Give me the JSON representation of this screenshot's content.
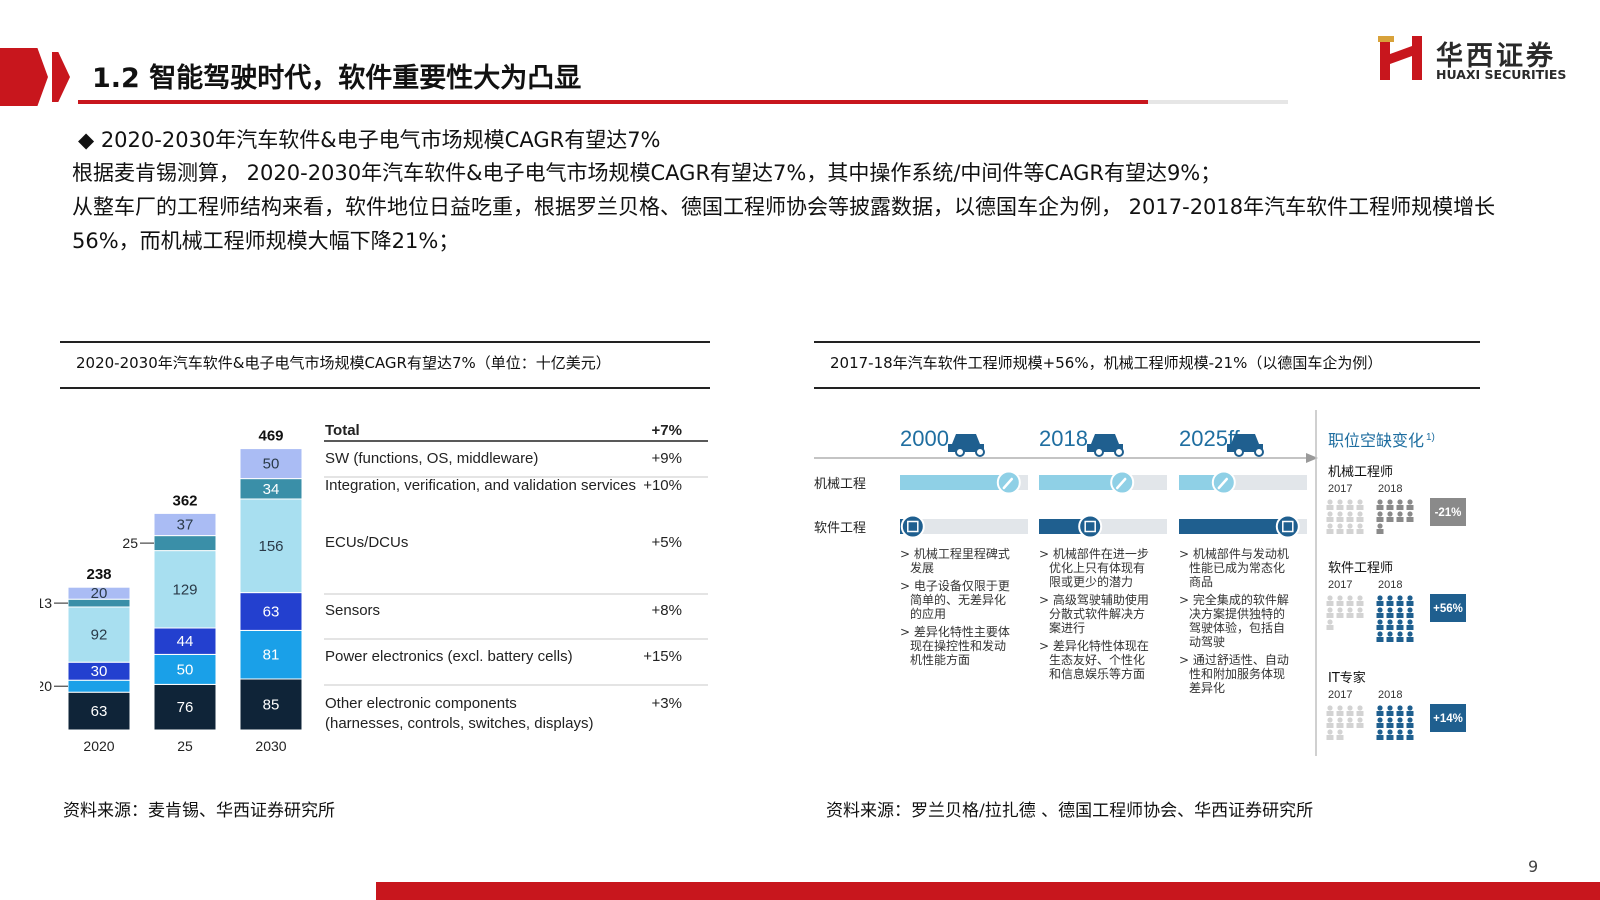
{
  "header": {
    "title": "1.2 智能驾驶时代，软件重要性大为凸显",
    "logo_cn": "华西证券",
    "logo_en": "HUAXI SECURITIES",
    "accent_color": "#c8161d"
  },
  "body": {
    "bullet": "◆  2020-2030年汽车软件&电子电气市场规模CAGR有望达7%",
    "para1": "根据麦肯锡测算， 2020-2030年汽车软件&电子电气市场规模CAGR有望达7%，其中操作系统/中间件等CAGR有望达9%；",
    "para2": "从整车厂的工程师结构来看，软件地位日益吃重，根据罗兰贝格、德国工程师协会等披露数据，以德国车企为例， 2017-2018年汽车软件工程师规模增长56%，而机械工程师规模大幅下降21%；"
  },
  "left_panel": {
    "title": "2020-2030年汽车软件&电子电气市场规模CAGR有望达7%（单位：十亿美元）",
    "source": "资料来源：麦肯锡、华西证券研究所"
  },
  "chart_data": {
    "type": "bar",
    "stacked": true,
    "categories": [
      "2020",
      "25",
      "2030"
    ],
    "totals": [
      238,
      362,
      469
    ],
    "legend_header": {
      "name": "Total",
      "cagr": "+7%"
    },
    "series": [
      {
        "name": "Other electronic components (harnesses, controls, switches, displays)",
        "name_lines": [
          "Other electronic components",
          "(harnesses, controls, switches, displays)"
        ],
        "cagr": "+3%",
        "values": [
          63,
          76,
          85
        ],
        "color": "#0f2438",
        "text": "light"
      },
      {
        "name": "Power electronics (excl. battery cells)",
        "name_lines": [
          "Power electronics (excl. battery cells)"
        ],
        "cagr": "+15%",
        "values": [
          20,
          50,
          81
        ],
        "color": "#1aa0e8",
        "text": "light"
      },
      {
        "name": "Sensors",
        "name_lines": [
          "Sensors"
        ],
        "cagr": "+8%",
        "values": [
          30,
          44,
          63
        ],
        "color": "#2340cf",
        "text": "light"
      },
      {
        "name": "ECUs/DCUs",
        "name_lines": [
          "ECUs/DCUs"
        ],
        "cagr": "+5%",
        "values": [
          92,
          129,
          156
        ],
        "color": "#a8dff0",
        "text": "dark"
      },
      {
        "name": "Integration, verification, and validation services",
        "name_lines": [
          "Integration, verification, and validation services"
        ],
        "cagr": "+10%",
        "values": [
          13,
          25,
          34
        ],
        "color": "#3a8fa8",
        "text": "light"
      },
      {
        "name": "SW (functions, OS, middleware)",
        "name_lines": [
          "SW (functions, OS, middleware)"
        ],
        "cagr": "+9%",
        "values": [
          20,
          37,
          50
        ],
        "color": "#aabcf4",
        "text": "dark"
      }
    ],
    "outside_labels": [
      {
        "text": "20",
        "category": "2020",
        "series": "Power electronics (excl. battery cells)"
      },
      {
        "text": "13",
        "category": "2020",
        "series": "Integration, verification, and validation services"
      },
      {
        "text": "25",
        "category": "25",
        "series": "Integration, verification, and validation services"
      }
    ]
  },
  "right_panel": {
    "title": "2017-18年汽车软件工程师规模+56%，机械工程师规模-21%（以德国车企为例）",
    "source": "资料来源：罗兰贝格/拉扎德 、德国工程师协会、华西证券研究所",
    "years": [
      "2000",
      "2018",
      "2025ff"
    ],
    "rows": [
      "机械工程",
      "软件工程"
    ],
    "mech_fill": [
      0.85,
      0.65,
      0.35
    ],
    "soft_fill": [
      0.1,
      0.4,
      0.85
    ],
    "columns": [
      {
        "bullets": [
          [
            "机械工程里程碑式",
            "发展"
          ],
          [
            "电子设备仅限于更",
            "简单的、无差异化",
            "的应用"
          ],
          [
            "差异化特性主要体",
            "现在操控性和发动",
            "机性能方面"
          ]
        ]
      },
      {
        "bullets": [
          [
            "机械部件在进一步",
            "优化上只有体现有",
            "限或更少的潜力"
          ],
          [
            "高级驾驶辅助使用",
            "分散式软件解决方",
            "案进行"
          ],
          [
            "差异化特性体现在",
            "生态友好、个性化",
            "和信息娱乐等方面"
          ]
        ]
      },
      {
        "bullets": [
          [
            "机械部件与发动机",
            "性能已成为常态化",
            "商品"
          ],
          [
            "完全集成的软件解",
            "决方案提供独特的",
            "驾驶体验，包括自",
            "动驾驶"
          ],
          [
            "通过舒适性、自动",
            "性和附加服务体现",
            "差异化"
          ]
        ]
      }
    ],
    "side": {
      "header": "职位空缺变化",
      "header_sup": "1)",
      "groups": [
        {
          "label": "机械工程师",
          "y1": "2017",
          "y2": "2018",
          "change": "-21%",
          "badge_color": "#8a8a8a",
          "icons_2017": 12,
          "icons_2018": 9
        },
        {
          "label": "软件工程师",
          "y1": "2017",
          "y2": "2018",
          "change": "+56%",
          "badge_color": "#1f5f8f",
          "icons_2017": 9,
          "icons_2018": 16
        },
        {
          "label": "IT专家",
          "y1": "2017",
          "y2": "2018",
          "change": "+14%",
          "badge_color": "#1f5f8f",
          "icons_2017": 10,
          "icons_2018": 12
        }
      ]
    }
  },
  "page_number": "9"
}
